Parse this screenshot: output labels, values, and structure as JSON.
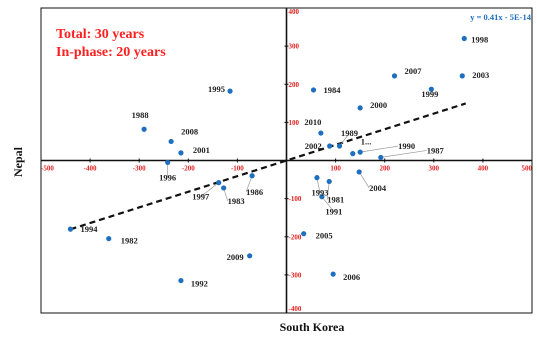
{
  "chart_data": {
    "type": "scatter",
    "title": "",
    "xlabel": "South Korea",
    "ylabel": "Nepal",
    "xlim": [
      -500,
      500
    ],
    "ylim": [
      -400,
      400
    ],
    "xticks": [
      -500,
      -400,
      -300,
      -200,
      -100,
      0,
      100,
      200,
      300,
      400,
      500
    ],
    "yticks": [
      -400,
      -300,
      -200,
      -100,
      0,
      100,
      200,
      300,
      400
    ],
    "xtick_labels": [
      "-500",
      "-400",
      "-300",
      "-200",
      "-100",
      "0",
      "100",
      "200",
      "300",
      "400",
      "500"
    ],
    "ytick_labels": [
      "-400",
      "-300",
      "-200",
      "-100",
      "0",
      "100",
      "200",
      "300",
      "400"
    ],
    "grid": false,
    "marker_color": "#1f6fbf",
    "trendline": {
      "slope": 0.41,
      "intercept": 0,
      "equation": "y = 0.41x - 5E-14",
      "x_range": [
        -440,
        365
      ],
      "style": "dashed"
    },
    "annotations": [
      "Total: 30 years",
      "In-phase: 20 years"
    ],
    "points": [
      {
        "label": "1998",
        "x": 362,
        "y": 320
      },
      {
        "label": "2003",
        "x": 358,
        "y": 222
      },
      {
        "label": "2007",
        "x": 220,
        "y": 222
      },
      {
        "label": "1999",
        "x": 295,
        "y": 187
      },
      {
        "label": "1984",
        "x": 55,
        "y": 185
      },
      {
        "label": "1995",
        "x": -115,
        "y": 182
      },
      {
        "label": "2000",
        "x": 150,
        "y": 138
      },
      {
        "label": "1988",
        "x": -290,
        "y": 82
      },
      {
        "label": "2008",
        "x": -235,
        "y": 50
      },
      {
        "label": "2010",
        "x": 70,
        "y": 72
      },
      {
        "label": "1989",
        "x": 108,
        "y": 38
      },
      {
        "label": "1...",
        "x": 135,
        "y": 18
      },
      {
        "label": "2002",
        "x": 88,
        "y": 38
      },
      {
        "label": "1990",
        "x": 150,
        "y": 22
      },
      {
        "label": "1987",
        "x": 192,
        "y": 8
      },
      {
        "label": "2001",
        "x": -215,
        "y": 20
      },
      {
        "label": "1996",
        "x": -242,
        "y": -5
      },
      {
        "label": "1986",
        "x": -70,
        "y": -40
      },
      {
        "label": "1997",
        "x": -138,
        "y": -58
      },
      {
        "label": "1983",
        "x": -128,
        "y": -72
      },
      {
        "label": "1993",
        "x": 62,
        "y": -45
      },
      {
        "label": "1981",
        "x": 87,
        "y": -55
      },
      {
        "label": "2004",
        "x": 148,
        "y": -30
      },
      {
        "label": "1991",
        "x": 72,
        "y": -95
      },
      {
        "label": "1994",
        "x": -440,
        "y": -180
      },
      {
        "label": "1982",
        "x": -362,
        "y": -205
      },
      {
        "label": "2005",
        "x": 35,
        "y": -192
      },
      {
        "label": "2009",
        "x": -75,
        "y": -250
      },
      {
        "label": "2006",
        "x": 95,
        "y": -298
      },
      {
        "label": "1992",
        "x": -215,
        "y": -315
      }
    ]
  }
}
